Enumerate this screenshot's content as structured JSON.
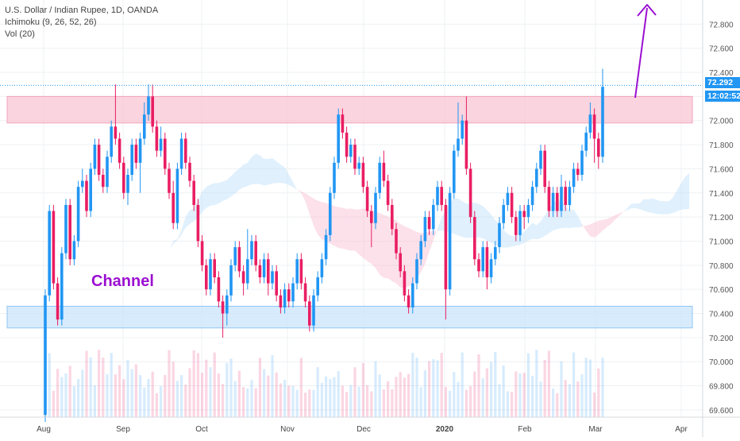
{
  "legend": {
    "symbol": "U.S. Dollar / Indian Rupee, 1D, OANDA",
    "ichimoku": "Ichimoku (9, 26, 52, 26)",
    "volume": "Vol (20)"
  },
  "price_tags": {
    "last": "72.292",
    "countdown": "12:02:52"
  },
  "annotation": "Channel",
  "colors": {
    "up": "#2196f3",
    "down": "#e91e63",
    "arrow": "#9b0fd1",
    "resistance_zone": "#f8c5d3",
    "support_zone": "#c9e4fb",
    "cloud_bull": "#bbdefb",
    "cloud_bear": "#f8bbd0",
    "price_line": "#2196f3"
  },
  "chart_data": {
    "type": "candlestick",
    "x_tick_labels": [
      "Aug",
      "Sep",
      "Oct",
      "Nov",
      "Dec",
      "2020",
      "Feb",
      "Mar",
      "Apr"
    ],
    "y_tick_labels": [
      "69.600",
      "69.800",
      "70.000",
      "70.200",
      "70.400",
      "70.600",
      "70.800",
      "71.000",
      "71.200",
      "71.400",
      "71.600",
      "71.800",
      "72.000",
      "72.200",
      "72.400",
      "72.600",
      "72.800"
    ],
    "y_range": [
      69.54,
      73.0
    ],
    "current_price": 72.292,
    "zones": [
      {
        "name": "resistance",
        "from": 71.98,
        "to": 72.2
      },
      {
        "name": "support",
        "from": 70.28,
        "to": 70.46
      }
    ],
    "candles": [
      [
        69.56,
        70.55,
        69.5,
        70.6
      ],
      [
        70.55,
        71.25,
        70.5,
        71.3
      ],
      [
        71.25,
        70.65,
        70.6,
        71.3
      ],
      [
        70.65,
        70.35,
        70.3,
        70.7
      ],
      [
        70.35,
        70.9,
        70.3,
        70.95
      ],
      [
        70.9,
        71.3,
        70.85,
        71.35
      ],
      [
        71.3,
        70.85,
        70.8,
        71.35
      ],
      [
        70.85,
        71.0,
        70.8,
        71.05
      ],
      [
        71.0,
        71.45,
        70.95,
        71.5
      ],
      [
        71.45,
        71.5,
        71.4,
        71.6
      ],
      [
        71.5,
        71.25,
        71.2,
        71.55
      ],
      [
        71.25,
        71.6,
        71.2,
        71.65
      ],
      [
        71.6,
        71.8,
        71.55,
        71.85
      ],
      [
        71.8,
        71.55,
        71.5,
        71.85
      ],
      [
        71.55,
        71.45,
        71.4,
        71.6
      ],
      [
        71.45,
        71.7,
        71.4,
        71.75
      ],
      [
        71.7,
        71.95,
        71.65,
        72.0
      ],
      [
        71.95,
        71.85,
        71.8,
        72.3
      ],
      [
        71.85,
        71.65,
        71.6,
        71.9
      ],
      [
        71.65,
        71.4,
        71.35,
        71.7
      ],
      [
        71.4,
        71.55,
        71.3,
        71.6
      ],
      [
        71.55,
        71.8,
        71.5,
        71.85
      ],
      [
        71.8,
        71.65,
        71.6,
        71.85
      ],
      [
        71.65,
        71.85,
        71.4,
        71.9
      ],
      [
        71.85,
        72.05,
        71.8,
        72.15
      ],
      [
        72.05,
        72.2,
        72.0,
        72.3
      ],
      [
        72.2,
        71.95,
        71.9,
        72.3
      ],
      [
        71.95,
        71.75,
        71.7,
        72.0
      ],
      [
        71.75,
        71.85,
        71.7,
        71.95
      ],
      [
        71.85,
        71.6,
        71.55,
        71.9
      ],
      [
        71.6,
        71.4,
        71.35,
        71.65
      ],
      [
        71.4,
        71.15,
        71.1,
        71.5
      ],
      [
        71.15,
        71.6,
        71.1,
        71.65
      ],
      [
        71.6,
        71.85,
        71.55,
        71.9
      ],
      [
        71.85,
        71.65,
        71.6,
        71.9
      ],
      [
        71.65,
        71.5,
        71.45,
        71.7
      ],
      [
        71.5,
        71.3,
        71.25,
        71.55
      ],
      [
        71.3,
        71.0,
        70.95,
        71.35
      ],
      [
        71.0,
        70.8,
        70.75,
        71.05
      ],
      [
        70.8,
        70.6,
        70.55,
        70.85
      ],
      [
        70.6,
        70.85,
        70.55,
        70.9
      ],
      [
        70.85,
        70.7,
        70.65,
        70.9
      ],
      [
        70.7,
        70.5,
        70.45,
        70.75
      ],
      [
        70.5,
        70.4,
        70.2,
        70.55
      ],
      [
        70.4,
        70.55,
        70.3,
        70.6
      ],
      [
        70.55,
        70.8,
        70.5,
        70.85
      ],
      [
        70.8,
        70.95,
        70.75,
        71.0
      ],
      [
        70.95,
        70.75,
        70.7,
        71.0
      ],
      [
        70.75,
        70.65,
        70.55,
        70.8
      ],
      [
        70.65,
        70.85,
        70.6,
        71.1
      ],
      [
        70.85,
        71.0,
        70.8,
        71.05
      ],
      [
        71.0,
        70.8,
        70.75,
        71.05
      ],
      [
        70.8,
        70.7,
        70.65,
        70.85
      ],
      [
        70.7,
        70.85,
        70.65,
        70.9
      ],
      [
        70.85,
        70.65,
        70.55,
        70.9
      ],
      [
        70.65,
        70.75,
        70.6,
        70.8
      ],
      [
        70.75,
        70.55,
        70.5,
        70.8
      ],
      [
        70.55,
        70.45,
        70.4,
        70.6
      ],
      [
        70.45,
        70.6,
        70.4,
        70.65
      ],
      [
        70.6,
        70.5,
        70.45,
        70.65
      ],
      [
        70.5,
        70.65,
        70.45,
        70.7
      ],
      [
        70.65,
        70.85,
        70.6,
        70.9
      ],
      [
        70.85,
        70.65,
        70.6,
        70.9
      ],
      [
        70.65,
        70.5,
        70.45,
        70.7
      ],
      [
        70.5,
        70.3,
        70.25,
        70.55
      ],
      [
        70.3,
        70.55,
        70.25,
        70.6
      ],
      [
        70.55,
        70.7,
        70.5,
        70.75
      ],
      [
        70.7,
        70.85,
        70.65,
        70.9
      ],
      [
        70.85,
        71.05,
        70.8,
        71.1
      ],
      [
        71.05,
        71.4,
        71.0,
        71.45
      ],
      [
        71.4,
        71.65,
        71.35,
        71.7
      ],
      [
        71.65,
        72.05,
        71.6,
        72.1
      ],
      [
        72.05,
        71.9,
        71.85,
        72.1
      ],
      [
        71.9,
        71.7,
        71.65,
        71.95
      ],
      [
        71.7,
        71.8,
        71.65,
        71.85
      ],
      [
        71.8,
        71.6,
        71.55,
        71.85
      ],
      [
        71.6,
        71.65,
        71.55,
        71.7
      ],
      [
        71.65,
        71.45,
        71.4,
        71.7
      ],
      [
        71.45,
        71.25,
        71.2,
        71.5
      ],
      [
        71.25,
        71.15,
        70.95,
        71.3
      ],
      [
        71.15,
        71.4,
        71.1,
        71.45
      ],
      [
        71.4,
        71.65,
        71.35,
        71.7
      ],
      [
        71.65,
        71.5,
        71.45,
        71.75
      ],
      [
        71.5,
        71.3,
        71.25,
        71.55
      ],
      [
        71.3,
        71.1,
        71.05,
        71.35
      ],
      [
        71.1,
        70.9,
        70.85,
        71.15
      ],
      [
        70.9,
        70.75,
        70.7,
        70.95
      ],
      [
        70.75,
        70.55,
        70.5,
        70.8
      ],
      [
        70.55,
        70.45,
        70.4,
        70.6
      ],
      [
        70.45,
        70.65,
        70.4,
        70.7
      ],
      [
        70.65,
        70.85,
        70.6,
        70.9
      ],
      [
        70.85,
        71.0,
        70.8,
        71.05
      ],
      [
        71.0,
        71.2,
        70.95,
        71.25
      ],
      [
        71.2,
        71.1,
        71.05,
        71.25
      ],
      [
        71.1,
        71.3,
        71.05,
        71.35
      ],
      [
        71.3,
        71.45,
        71.25,
        71.5
      ],
      [
        71.45,
        71.3,
        71.25,
        71.5
      ],
      [
        71.3,
        70.6,
        70.35,
        71.35
      ],
      [
        70.6,
        71.4,
        70.55,
        71.45
      ],
      [
        71.4,
        71.75,
        71.35,
        71.8
      ],
      [
        71.75,
        71.85,
        71.7,
        72.15
      ],
      [
        71.85,
        72.0,
        71.8,
        72.05
      ],
      [
        72.0,
        71.6,
        71.55,
        72.2
      ],
      [
        71.6,
        71.2,
        71.15,
        71.65
      ],
      [
        71.2,
        70.85,
        70.8,
        71.25
      ],
      [
        70.85,
        70.75,
        70.7,
        70.9
      ],
      [
        70.75,
        70.95,
        70.7,
        71.0
      ],
      [
        70.95,
        70.7,
        70.6,
        71.0
      ],
      [
        70.7,
        70.85,
        70.65,
        70.9
      ],
      [
        70.85,
        70.95,
        70.8,
        71.0
      ],
      [
        70.95,
        71.15,
        70.9,
        71.2
      ],
      [
        71.15,
        71.3,
        71.1,
        71.35
      ],
      [
        71.3,
        71.4,
        71.25,
        71.45
      ],
      [
        71.4,
        71.2,
        71.15,
        71.45
      ],
      [
        71.2,
        71.05,
        71.0,
        71.25
      ],
      [
        71.05,
        71.25,
        71.0,
        71.3
      ],
      [
        71.25,
        71.2,
        71.1,
        71.3
      ],
      [
        71.2,
        71.3,
        71.15,
        71.35
      ],
      [
        71.3,
        71.45,
        71.25,
        71.5
      ],
      [
        71.45,
        71.6,
        71.4,
        71.65
      ],
      [
        71.6,
        71.75,
        71.55,
        71.8
      ],
      [
        71.75,
        71.45,
        71.4,
        71.8
      ],
      [
        71.45,
        71.25,
        71.2,
        71.5
      ],
      [
        71.25,
        71.4,
        71.2,
        71.45
      ],
      [
        71.4,
        71.25,
        71.2,
        71.45
      ],
      [
        71.25,
        71.45,
        71.2,
        71.55
      ],
      [
        71.45,
        71.3,
        71.25,
        71.5
      ],
      [
        71.3,
        71.45,
        71.25,
        71.5
      ],
      [
        71.45,
        71.6,
        71.4,
        71.65
      ],
      [
        71.6,
        71.55,
        71.5,
        71.65
      ],
      [
        71.55,
        71.75,
        71.5,
        71.8
      ],
      [
        71.75,
        71.9,
        71.7,
        71.95
      ],
      [
        71.9,
        72.05,
        71.85,
        72.15
      ],
      [
        72.05,
        71.85,
        71.65,
        72.1
      ],
      [
        71.85,
        71.7,
        71.6,
        71.9
      ],
      [
        71.7,
        72.28,
        71.65,
        72.43
      ]
    ]
  }
}
